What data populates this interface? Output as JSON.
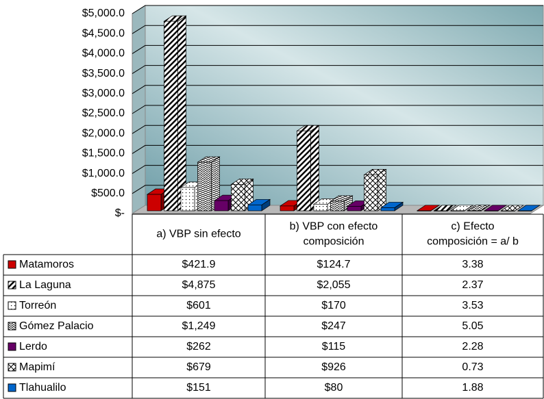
{
  "chart_data": {
    "type": "bar",
    "categories": [
      "a) VBP sin efecto",
      "b) VBP con efecto composición",
      "c) Efecto composición = a/ b"
    ],
    "ylim": [
      0,
      5000
    ],
    "yticks": [
      {
        "value": 0,
        "label": "$-"
      },
      {
        "value": 500,
        "label": "$500.0"
      },
      {
        "value": 1000,
        "label": "$1,000.0"
      },
      {
        "value": 1500,
        "label": "$1,500.0"
      },
      {
        "value": 2000,
        "label": "$2,000.0"
      },
      {
        "value": 2500,
        "label": "$2,500.0"
      },
      {
        "value": 3000,
        "label": "$3,000.0"
      },
      {
        "value": 3500,
        "label": "$3,500.0"
      },
      {
        "value": 4000,
        "label": "$4,000.0"
      },
      {
        "value": 4500,
        "label": "$4,500.0"
      },
      {
        "value": 5000,
        "label": "$5,000.0"
      }
    ],
    "grid": true,
    "series": [
      {
        "name": "Matamoros",
        "color": "#cc0000",
        "pattern": null,
        "values": [
          421.9,
          124.7,
          3.38
        ],
        "value_labels": [
          "$421.9",
          "$124.7",
          "3.38"
        ]
      },
      {
        "name": "La Laguna",
        "color": "#000000",
        "pattern": "diag",
        "values": [
          4875,
          2055,
          2.37
        ],
        "value_labels": [
          "$4,875",
          "$2,055",
          "2.37"
        ]
      },
      {
        "name": "Torreón",
        "color": "#000000",
        "pattern": "dots",
        "values": [
          601,
          170,
          3.53
        ],
        "value_labels": [
          "$601",
          "$170",
          "3.53"
        ]
      },
      {
        "name": "Gómez Palacio",
        "color": "#000000",
        "pattern": "zigzag",
        "values": [
          1249,
          247,
          5.05
        ],
        "value_labels": [
          "$1,249",
          "$247",
          "5.05"
        ]
      },
      {
        "name": "Lerdo",
        "color": "#660066",
        "pattern": null,
        "values": [
          262,
          115,
          2.28
        ],
        "value_labels": [
          "$262",
          "$115",
          "2.28"
        ]
      },
      {
        "name": "Mapimí",
        "color": "#000000",
        "pattern": "waves",
        "values": [
          679,
          926,
          0.73
        ],
        "value_labels": [
          "$679",
          "$926",
          "0.73"
        ]
      },
      {
        "name": "Tlahualilo",
        "color": "#0066cc",
        "pattern": null,
        "values": [
          151,
          80,
          1.88
        ],
        "value_labels": [
          "$151",
          "$80",
          "1.88"
        ]
      }
    ]
  }
}
